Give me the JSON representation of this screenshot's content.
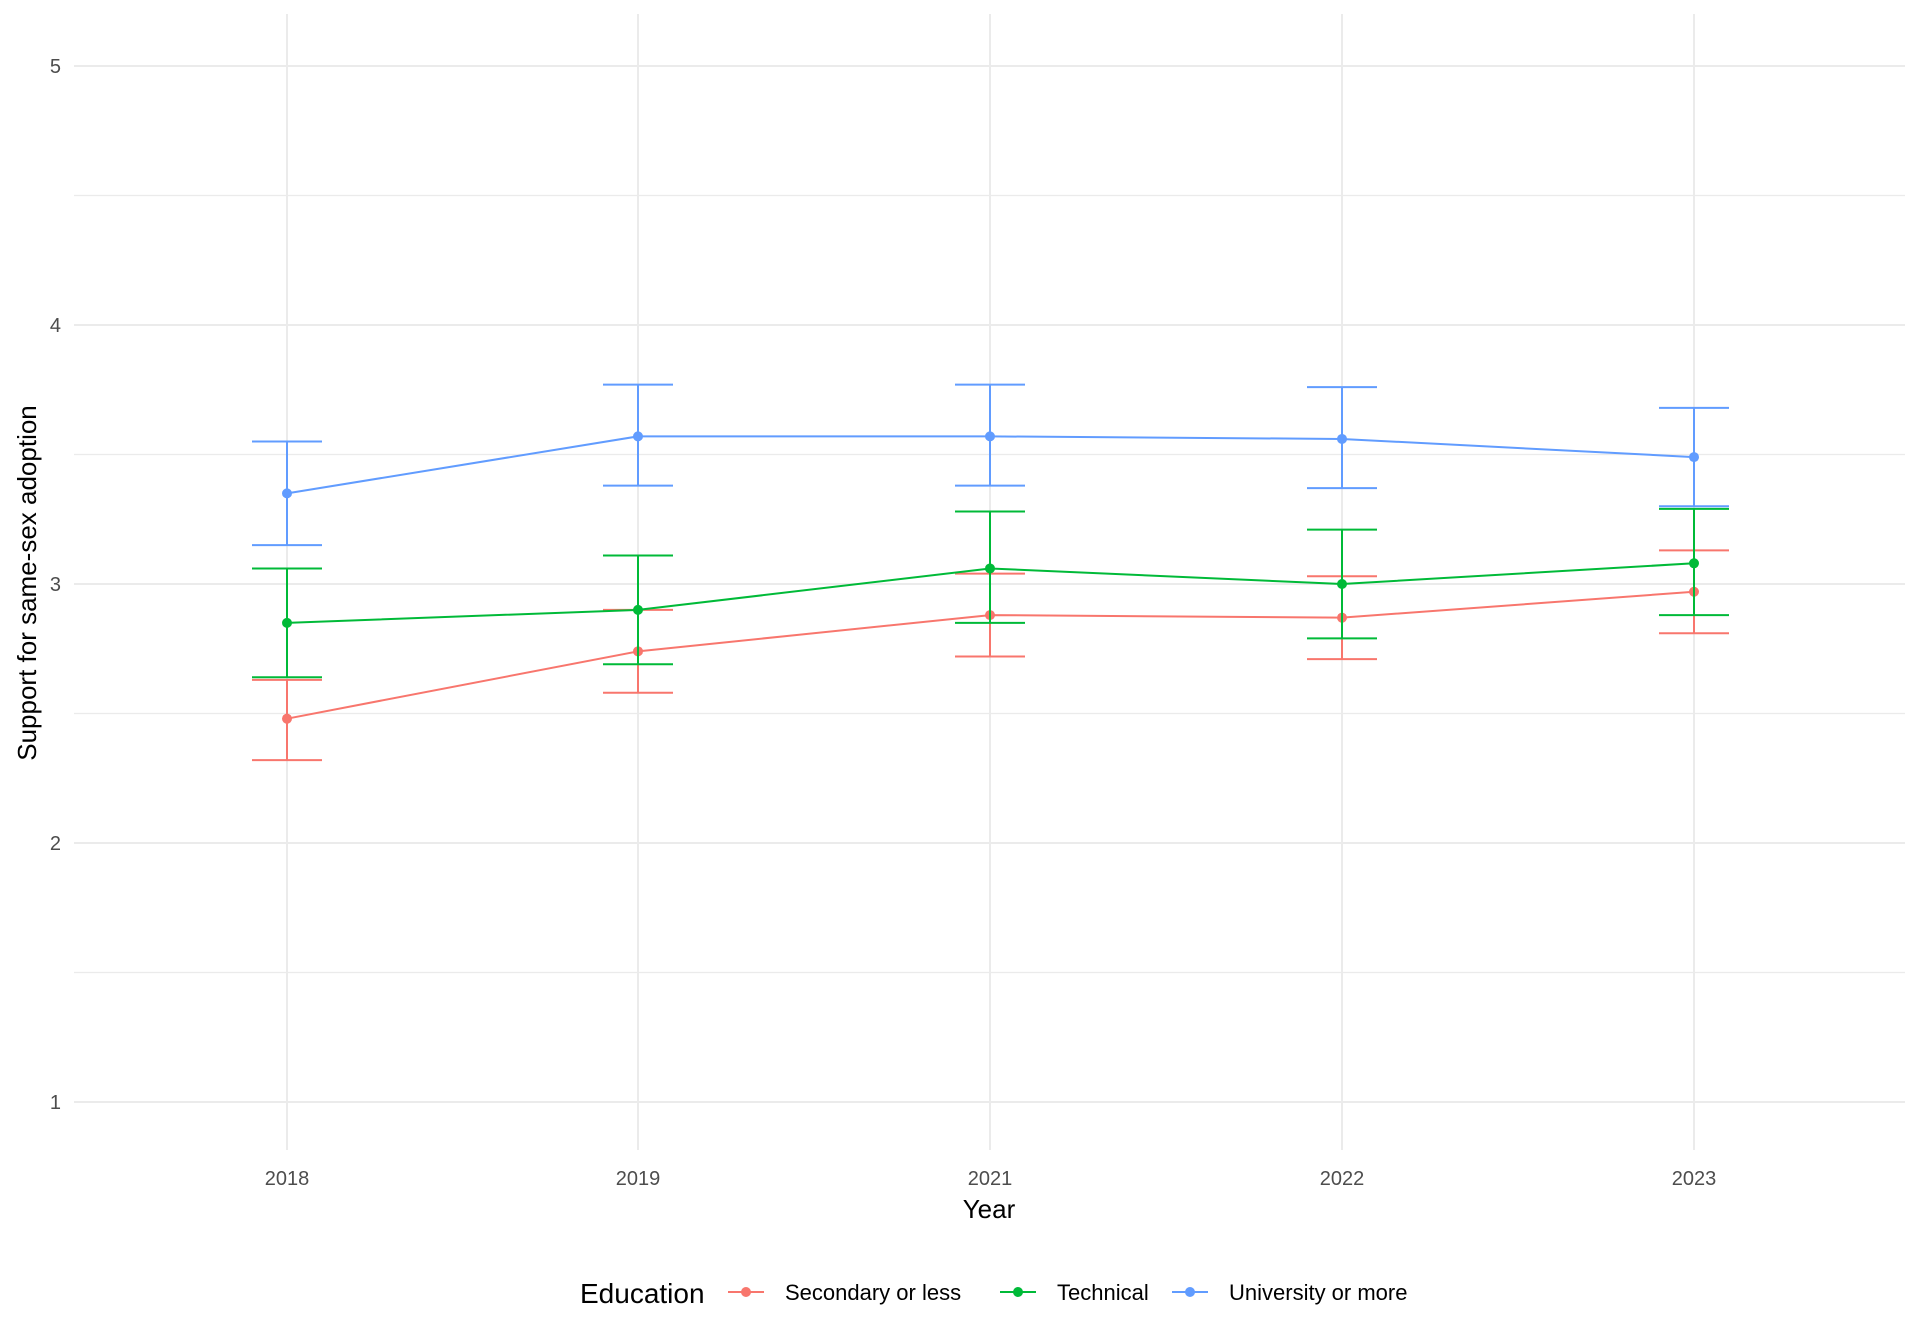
{
  "chart_data": {
    "type": "line",
    "xlabel": "Year",
    "ylabel": "Support for same-sex adoption",
    "categories": [
      "2018",
      "2019",
      "2021",
      "2022",
      "2023"
    ],
    "ylim": [
      0.8,
      5.2
    ],
    "y_ticks": [
      1,
      2,
      3,
      4,
      5
    ],
    "y_minor_ticks": [
      1.5,
      2.5,
      3.5,
      4.5
    ],
    "grid": true,
    "error_bars": true,
    "legend": {
      "title": "Education",
      "position": "bottom"
    },
    "series": [
      {
        "name": "Secondary or less",
        "color": "#F8766D",
        "values": [
          2.48,
          2.74,
          2.88,
          2.87,
          2.97
        ],
        "lower": [
          2.32,
          2.58,
          2.72,
          2.71,
          2.81
        ],
        "upper": [
          2.63,
          2.9,
          3.04,
          3.03,
          3.13
        ]
      },
      {
        "name": "Technical",
        "color": "#00BA38",
        "values": [
          2.85,
          2.9,
          3.06,
          3.0,
          3.08
        ],
        "lower": [
          2.64,
          2.69,
          2.85,
          2.79,
          2.88
        ],
        "upper": [
          3.06,
          3.11,
          3.28,
          3.21,
          3.29
        ]
      },
      {
        "name": "University or more",
        "color": "#619CFF",
        "values": [
          3.35,
          3.57,
          3.57,
          3.56,
          3.49
        ],
        "lower": [
          3.15,
          3.38,
          3.38,
          3.37,
          3.3
        ],
        "upper": [
          3.55,
          3.77,
          3.77,
          3.76,
          3.68
        ]
      }
    ]
  }
}
